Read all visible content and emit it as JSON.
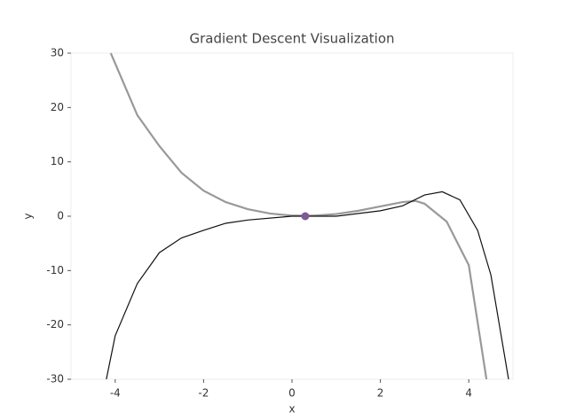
{
  "chart_data": {
    "type": "line",
    "title": "Gradient Descent Visualization",
    "x_label": "x",
    "y_label": "y",
    "xlim": [
      -5,
      5
    ],
    "ylim": [
      -30,
      30
    ],
    "xticks": [
      -4,
      -2,
      0,
      2,
      4
    ],
    "yticks": [
      -30,
      -20,
      -10,
      0,
      10,
      20,
      30
    ],
    "series": [
      {
        "color": "#999999",
        "width": 2.2,
        "x": [
          -4.1,
          -3.5,
          -3,
          -2.5,
          -2,
          -1.5,
          -1,
          -0.5,
          0,
          0.5,
          1,
          1.5,
          2,
          2.5,
          2.8,
          3,
          3.5,
          4,
          4.4
        ],
        "values": [
          30,
          18.6,
          12.9,
          8,
          4.7,
          2.6,
          1.3,
          0.5,
          0.1,
          0.1,
          0.4,
          1,
          1.8,
          2.6,
          2.8,
          2.3,
          -1,
          -9,
          -30
        ]
      },
      {
        "color": "#111111",
        "width": 1.2,
        "x": [
          -4.2,
          -4,
          -3.5,
          -3,
          -2.5,
          -2,
          -1.5,
          -1,
          0,
          1,
          2,
          2.5,
          3,
          3.4,
          3.8,
          4.2,
          4.5,
          4.9
        ],
        "values": [
          -30,
          -22,
          -12.4,
          -6.7,
          -4,
          -2.6,
          -1.3,
          -0.7,
          0,
          0,
          1,
          1.9,
          3.9,
          4.5,
          3,
          -2.6,
          -10.8,
          -30
        ]
      }
    ],
    "points": {
      "color": "#7e5a98",
      "x": [
        0.3
      ],
      "values": [
        0
      ]
    }
  }
}
